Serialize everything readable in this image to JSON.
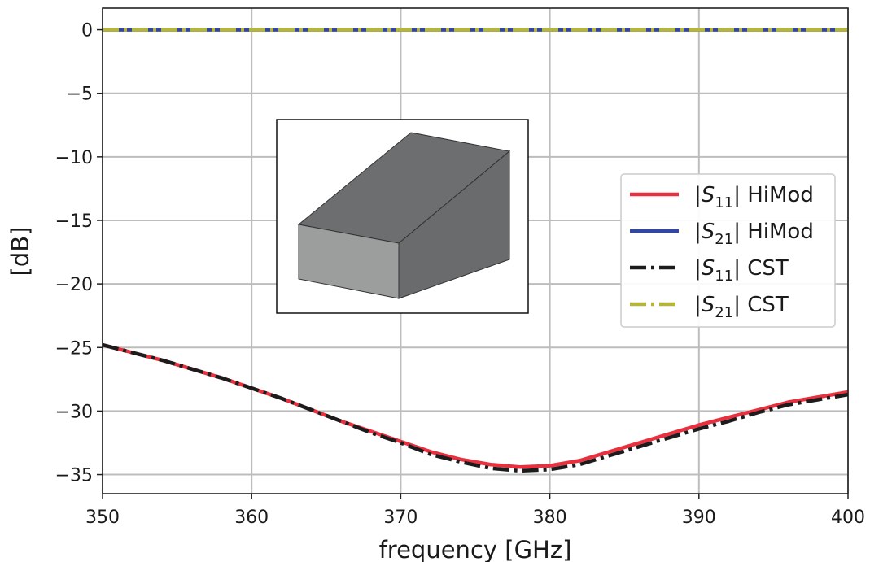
{
  "chart_data": {
    "type": "line",
    "title": "",
    "xlabel": "frequency [GHz]",
    "ylabel": "[dB]",
    "xlim": [
      350,
      400
    ],
    "ylim": [
      -36.5,
      1.7
    ],
    "xticks": [
      350,
      360,
      370,
      380,
      390,
      400
    ],
    "yticks": [
      0,
      -5,
      -10,
      -15,
      -20,
      -25,
      -30,
      -35
    ],
    "xtick_labels": [
      "350",
      "360",
      "370",
      "380",
      "390",
      "400"
    ],
    "ytick_labels": [
      "0",
      "−5",
      "−10",
      "−15",
      "−20",
      "−25",
      "−30",
      "−35"
    ],
    "grid": true,
    "legend_placement": "center-right",
    "series": [
      {
        "name": "|S11| HiMod",
        "legend": {
          "pre": "|",
          "base": "S",
          "sub": "11",
          "post": "| HiMod"
        },
        "color": "#e8303e",
        "style": "solid",
        "x": [
          350,
          352,
          354,
          356,
          358,
          360,
          362,
          364,
          366,
          368,
          370,
          372,
          374,
          376,
          378,
          380,
          382,
          384,
          386,
          388,
          390,
          392,
          394,
          396,
          398,
          400
        ],
        "y": [
          -24.8,
          -25.4,
          -26.0,
          -26.7,
          -27.4,
          -28.2,
          -29.0,
          -29.9,
          -30.8,
          -31.6,
          -32.4,
          -33.2,
          -33.8,
          -34.2,
          -34.4,
          -34.3,
          -33.9,
          -33.2,
          -32.5,
          -31.8,
          -31.1,
          -30.5,
          -29.9,
          -29.3,
          -28.9,
          -28.5
        ]
      },
      {
        "name": "|S21| HiMod",
        "legend": {
          "pre": "|",
          "base": "S",
          "sub": "21",
          "post": "| HiMod"
        },
        "color": "#3346a0",
        "style": "solid",
        "x": [
          350,
          400
        ],
        "y": [
          0.0,
          0.0
        ]
      },
      {
        "name": "|S11| CST",
        "legend": {
          "pre": "|",
          "base": "S",
          "sub": "11",
          "post": "| CST"
        },
        "color": "#1c1c1c",
        "style": "dashdot",
        "x": [
          350,
          352,
          354,
          356,
          358,
          360,
          362,
          364,
          366,
          368,
          370,
          372,
          374,
          376,
          378,
          380,
          382,
          384,
          386,
          388,
          390,
          392,
          394,
          396,
          398,
          400
        ],
        "y": [
          -24.8,
          -25.4,
          -26.0,
          -26.7,
          -27.4,
          -28.2,
          -29.0,
          -29.9,
          -30.8,
          -31.7,
          -32.5,
          -33.4,
          -34.0,
          -34.5,
          -34.7,
          -34.6,
          -34.2,
          -33.5,
          -32.8,
          -32.1,
          -31.4,
          -30.8,
          -30.1,
          -29.5,
          -29.1,
          -28.7
        ]
      },
      {
        "name": "|S21| CST",
        "legend": {
          "pre": "|",
          "base": "S",
          "sub": "21",
          "post": "| CST"
        },
        "color": "#b3b63a",
        "style": "dashdot",
        "x": [
          350,
          400
        ],
        "y": [
          0.0,
          0.0
        ]
      }
    ]
  }
}
